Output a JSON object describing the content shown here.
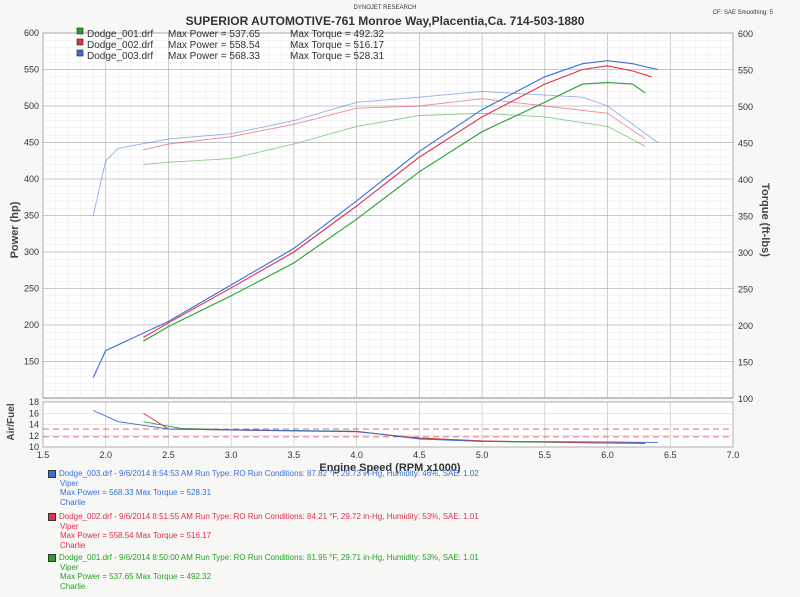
{
  "header": {
    "vendor": "DYNOJET RESEARCH",
    "title": "SUPERIOR AUTOMOTIVE-761 Monroe Way,Placentia,Ca. 714-503-1880",
    "settings": "CF: SAE Smoothing: 5"
  },
  "legend": [
    {
      "file": "Dodge_001.drf",
      "power_label": "Max Power = 537.65",
      "torque_label": "Max Torque = 492.32",
      "color": "#2aa02a"
    },
    {
      "file": "Dodge_002.drf",
      "power_label": "Max Power = 558.54",
      "torque_label": "Max Torque = 516.17",
      "color": "#e0304a"
    },
    {
      "file": "Dodge_003.drf",
      "power_label": "Max Power = 568.33",
      "torque_label": "Max Torque = 528.31",
      "color": "#3a6fd8"
    }
  ],
  "runs": [
    {
      "color": "#3a6fd8",
      "line1": "Dodge_003.drf - 9/6/2014 8:54:53 AM  Run Type: RO  Run Conditions: 87.82 °F, 29.73 in-Hg,  Humidity:  46%, SAE: 1.02",
      "line2": "Viper",
      "line3": "Max Power = 568.33  Max Torque = 528.31",
      "line4": "Charlie"
    },
    {
      "color": "#e0304a",
      "line1": "Dodge_002.drf - 9/6/2014 8:51:55 AM  Run Type: RO  Run Conditions: 84.21 °F, 29.72 in-Hg,  Humidity:  53%, SAE: 1.01",
      "line2": "Viper",
      "line3": "Max Power = 558.54  Max Torque = 516.17",
      "line4": "Charlie"
    },
    {
      "color": "#2aa02a",
      "line1": "Dodge_001.drf - 9/6/2014 8:50:00 AM  Run Type: RO  Run Conditions: 81.95 °F, 29.71 in-Hg,  Humidity:  53%, SAE: 1.01",
      "line2": "Viper",
      "line3": "Max Power = 537.65  Max Torque = 492.32",
      "line4": "Charlie"
    }
  ],
  "chart_data": {
    "type": "line",
    "xlabel": "Engine Speed (RPM x1000)",
    "ylabel_left": "Power (hp)",
    "ylabel_right": "Torque (ft-lbs)",
    "ylabel_af": "Air/Fuel",
    "xlim": [
      1.5,
      7.0
    ],
    "x_ticks": [
      "1.5",
      "2.0",
      "2.5",
      "3.0",
      "3.5",
      "4.0",
      "4.5",
      "5.0",
      "5.5",
      "6.0",
      "6.5",
      "7.0"
    ],
    "power_ylim": [
      100,
      600
    ],
    "power_ticks": [
      "150",
      "200",
      "250",
      "300",
      "350",
      "400",
      "450",
      "500",
      "550",
      "600"
    ],
    "torque_ylim": [
      100,
      600
    ],
    "torque_ticks": [
      "100",
      "150",
      "200",
      "250",
      "300",
      "350",
      "400",
      "450",
      "500",
      "550",
      "600"
    ],
    "af_ylim": [
      10,
      18
    ],
    "af_ticks": [
      "18",
      "16",
      "14",
      "12",
      "10"
    ],
    "af_reference": [
      13.2,
      11.8
    ],
    "grid": true,
    "series": [
      {
        "name": "Dodge_001.drf",
        "color": "#2aa02a",
        "power": [
          [
            2.3,
            178
          ],
          [
            2.5,
            198
          ],
          [
            3.0,
            240
          ],
          [
            3.5,
            285
          ],
          [
            4.0,
            345
          ],
          [
            4.5,
            410
          ],
          [
            5.0,
            465
          ],
          [
            5.5,
            505
          ],
          [
            5.8,
            530
          ],
          [
            6.0,
            532
          ],
          [
            6.2,
            530
          ],
          [
            6.3,
            518
          ]
        ],
        "torque": [
          [
            2.3,
            420
          ],
          [
            2.5,
            423
          ],
          [
            3.0,
            428
          ],
          [
            3.5,
            448
          ],
          [
            4.0,
            472
          ],
          [
            4.5,
            487
          ],
          [
            5.0,
            490
          ],
          [
            5.5,
            485
          ],
          [
            6.0,
            472
          ],
          [
            6.3,
            445
          ]
        ],
        "af": [
          [
            2.3,
            14.5
          ],
          [
            2.6,
            13.3
          ],
          [
            3.0,
            13.1
          ],
          [
            4.0,
            12.8
          ],
          [
            4.5,
            11.5
          ],
          [
            5.0,
            11.0
          ],
          [
            6.0,
            10.7
          ],
          [
            6.3,
            10.6
          ]
        ]
      },
      {
        "name": "Dodge_002.drf",
        "color": "#e0304a",
        "power": [
          [
            2.3,
            183
          ],
          [
            2.5,
            203
          ],
          [
            3.0,
            251
          ],
          [
            3.5,
            300
          ],
          [
            4.0,
            363
          ],
          [
            4.5,
            430
          ],
          [
            5.0,
            485
          ],
          [
            5.5,
            530
          ],
          [
            5.8,
            550
          ],
          [
            6.0,
            555
          ],
          [
            6.2,
            548
          ],
          [
            6.35,
            540
          ]
        ],
        "torque": [
          [
            2.3,
            440
          ],
          [
            2.5,
            448
          ],
          [
            3.0,
            458
          ],
          [
            3.5,
            475
          ],
          [
            4.0,
            497
          ],
          [
            4.5,
            500
          ],
          [
            5.0,
            510
          ],
          [
            5.5,
            500
          ],
          [
            6.0,
            490
          ],
          [
            6.3,
            455
          ]
        ],
        "af": [
          [
            2.3,
            16.0
          ],
          [
            2.5,
            13.2
          ],
          [
            3.0,
            13.0
          ],
          [
            4.0,
            12.7
          ],
          [
            4.5,
            11.6
          ],
          [
            5.0,
            11.1
          ],
          [
            6.0,
            10.7
          ],
          [
            6.3,
            10.7
          ]
        ]
      },
      {
        "name": "Dodge_003.drf",
        "color": "#3a6fd8",
        "power": [
          [
            1.9,
            128
          ],
          [
            2.0,
            165
          ],
          [
            2.5,
            205
          ],
          [
            3.0,
            255
          ],
          [
            3.5,
            305
          ],
          [
            4.0,
            370
          ],
          [
            4.5,
            438
          ],
          [
            5.0,
            495
          ],
          [
            5.5,
            540
          ],
          [
            5.8,
            558
          ],
          [
            6.0,
            562
          ],
          [
            6.2,
            558
          ],
          [
            6.4,
            550
          ]
        ],
        "torque": [
          [
            1.9,
            350
          ],
          [
            2.0,
            425
          ],
          [
            2.1,
            442
          ],
          [
            2.5,
            455
          ],
          [
            3.0,
            462
          ],
          [
            3.5,
            480
          ],
          [
            4.0,
            505
          ],
          [
            4.5,
            512
          ],
          [
            5.0,
            520
          ],
          [
            5.5,
            515
          ],
          [
            5.8,
            512
          ],
          [
            6.0,
            500
          ],
          [
            6.4,
            450
          ]
        ],
        "af": [
          [
            1.9,
            16.5
          ],
          [
            2.1,
            14.5
          ],
          [
            2.5,
            13.2
          ],
          [
            3.0,
            13.0
          ],
          [
            4.0,
            12.8
          ],
          [
            4.5,
            11.4
          ],
          [
            5.0,
            11.0
          ],
          [
            6.0,
            10.9
          ],
          [
            6.4,
            10.8
          ]
        ]
      }
    ]
  }
}
